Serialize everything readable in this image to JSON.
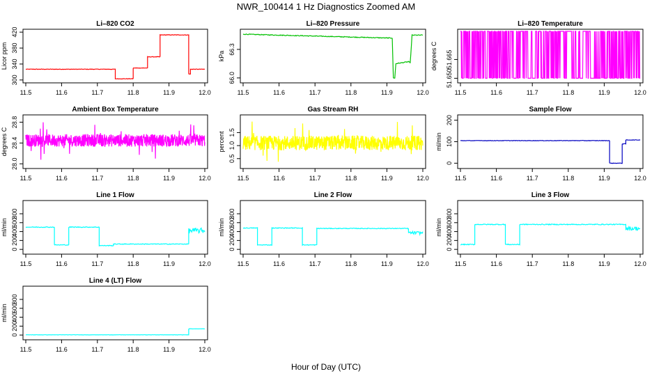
{
  "figure": {
    "title": "NWR_100414  1 Hz Diagnostics Zoomed AM",
    "xlabel": "Hour of Day (UTC)"
  },
  "chart_data": [
    {
      "id": "licor-co2",
      "type": "line",
      "title": "Li–820 CO2",
      "xlabel": "",
      "ylabel": "Licor ppm",
      "color": "#ff0000",
      "xlim": [
        11.5,
        12.0
      ],
      "ylim": [
        298,
        422
      ],
      "xticks": [
        "11.5",
        "11.6",
        "11.7",
        "11.8",
        "11.9",
        "12.0"
      ],
      "xtick_values": [
        11.5,
        11.6,
        11.7,
        11.8,
        11.9,
        12.0
      ],
      "yticks": [
        "300",
        "340",
        "380",
        "420"
      ],
      "ytick_values": [
        300,
        340,
        380,
        420
      ],
      "noise": 0.6,
      "x": [
        11.5,
        11.75,
        11.75,
        11.8,
        11.8,
        11.84,
        11.84,
        11.875,
        11.875,
        11.955,
        11.955,
        11.96,
        11.96,
        12.0
      ],
      "y": [
        327,
        327,
        303,
        303,
        330,
        330,
        358,
        358,
        413,
        413,
        315,
        315,
        327,
        327
      ]
    },
    {
      "id": "licor-pressure",
      "type": "line",
      "title": "Li–820 Pressure",
      "xlabel": "",
      "ylabel": "kPa",
      "color": "#00c000",
      "xlim": [
        11.5,
        12.0
      ],
      "ylim": [
        65.97,
        66.49
      ],
      "xticks": [
        "11.5",
        "11.6",
        "11.7",
        "11.8",
        "11.9",
        "12.0"
      ],
      "xtick_values": [
        11.5,
        11.6,
        11.7,
        11.8,
        11.9,
        12.0
      ],
      "yticks": [
        "66.0",
        "66.3"
      ],
      "ytick_values": [
        66.0,
        66.3
      ],
      "noise": 0.004,
      "x": [
        11.5,
        11.6,
        11.7,
        11.8,
        11.9,
        11.915,
        11.918,
        11.922,
        11.925,
        11.96,
        11.965,
        11.97,
        12.0
      ],
      "y": [
        66.46,
        66.45,
        66.44,
        66.43,
        66.42,
        66.42,
        66.0,
        66.0,
        66.15,
        66.17,
        66.16,
        66.45,
        66.45
      ]
    },
    {
      "id": "licor-temperature",
      "type": "line",
      "title": "Li–820 Temperature",
      "xlabel": "",
      "ylabel": "degrees C",
      "color": "#ff00ff",
      "xlim": [
        11.5,
        12.0
      ],
      "ylim": [
        51.648,
        51.6875
      ],
      "xticks": [
        "11.5",
        "11.6",
        "11.7",
        "11.8",
        "11.9",
        "12.0"
      ],
      "xtick_values": [
        11.5,
        11.6,
        11.7,
        11.8,
        11.9,
        12.0
      ],
      "yticks": [
        "51.650",
        "51.665"
      ],
      "ytick_values": [
        51.65,
        51.665
      ],
      "pattern": "toggle",
      "y_low": 51.65,
      "y_high": 51.6875
    },
    {
      "id": "ambient-box-temperature",
      "type": "line",
      "title": "Ambient Box Temperature",
      "xlabel": "",
      "ylabel": "degrees C",
      "color": "#ff00ff",
      "xlim": [
        11.5,
        12.0
      ],
      "ylim": [
        27.95,
        28.9
      ],
      "xticks": [
        "11.5",
        "11.6",
        "11.7",
        "11.8",
        "11.9",
        "12.0"
      ],
      "xtick_values": [
        11.5,
        11.6,
        11.7,
        11.8,
        11.9,
        12.0
      ],
      "yticks": [
        "28.0",
        "28.4",
        "28.8"
      ],
      "ytick_values": [
        28.0,
        28.4,
        28.8
      ],
      "pattern": "noise",
      "mean": 28.45,
      "amplitude": 0.12,
      "spike": 0.4
    },
    {
      "id": "gas-stream-rh",
      "type": "line",
      "title": "Gas Stream RH",
      "xlabel": "",
      "ylabel": "percent",
      "color": "#ffff00",
      "xlim": [
        11.5,
        12.0
      ],
      "ylim": [
        0.2,
        2.1
      ],
      "xticks": [
        "11.5",
        "11.6",
        "11.7",
        "11.8",
        "11.9",
        "12.0"
      ],
      "xtick_values": [
        11.5,
        11.6,
        11.7,
        11.8,
        11.9,
        12.0
      ],
      "yticks": [
        "0.5",
        "1.0",
        "1.5"
      ],
      "ytick_values": [
        0.5,
        1.0,
        1.5
      ],
      "pattern": "noise",
      "mean": 1.1,
      "amplitude": 0.28,
      "spike": 0.9
    },
    {
      "id": "sample-flow",
      "type": "line",
      "title": "Sample Flow",
      "xlabel": "",
      "ylabel": "ml/min",
      "color": "#0000c0",
      "xlim": [
        11.5,
        12.0
      ],
      "ylim": [
        -15,
        215
      ],
      "xticks": [
        "11.5",
        "11.6",
        "11.7",
        "11.8",
        "11.9",
        "12.0"
      ],
      "xtick_values": [
        11.5,
        11.6,
        11.7,
        11.8,
        11.9,
        12.0
      ],
      "yticks": [
        "0",
        "100",
        "200"
      ],
      "ytick_values": [
        0,
        100,
        200
      ],
      "noise": 1.0,
      "x": [
        11.5,
        11.915,
        11.915,
        11.95,
        11.95,
        11.96,
        11.96,
        12.0
      ],
      "y": [
        105,
        105,
        0,
        0,
        90,
        90,
        108,
        108
      ]
    },
    {
      "id": "line-1-flow",
      "type": "line",
      "title": "Line 1 Flow",
      "xlabel": "",
      "ylabel": "ml/min",
      "color": "#00ffff",
      "xlim": [
        11.5,
        12.0
      ],
      "ylim": [
        -60,
        1050
      ],
      "xticks": [
        "11.5",
        "11.6",
        "11.7",
        "11.8",
        "11.9",
        "12.0"
      ],
      "xtick_values": [
        11.5,
        11.6,
        11.7,
        11.8,
        11.9,
        12.0
      ],
      "yticks": [
        "0",
        "200",
        "400",
        "600",
        "800"
      ],
      "ytick_values": [
        0,
        200,
        400,
        600,
        800
      ],
      "noise": 8,
      "x": [
        11.5,
        11.58,
        11.58,
        11.62,
        11.62,
        11.705,
        11.705,
        11.745,
        11.745,
        11.955,
        11.955,
        12.0
      ],
      "y": [
        500,
        500,
        100,
        100,
        500,
        500,
        85,
        85,
        120,
        120,
        420,
        420
      ],
      "noisy_tail_from": 11.955,
      "noisy_tail_amp": 60
    },
    {
      "id": "line-2-flow",
      "type": "line",
      "title": "Line 2 Flow",
      "xlabel": "",
      "ylabel": "ml/min",
      "color": "#00ffff",
      "xlim": [
        11.5,
        12.0
      ],
      "ylim": [
        -60,
        1050
      ],
      "xticks": [
        "11.5",
        "11.6",
        "11.7",
        "11.8",
        "11.9",
        "12.0"
      ],
      "xtick_values": [
        11.5,
        11.6,
        11.7,
        11.8,
        11.9,
        12.0
      ],
      "yticks": [
        "0",
        "200",
        "400",
        "600",
        "800"
      ],
      "ytick_values": [
        0,
        200,
        400,
        600,
        800
      ],
      "noise": 8,
      "x": [
        11.5,
        11.54,
        11.54,
        11.58,
        11.58,
        11.665,
        11.665,
        11.705,
        11.705,
        11.96,
        11.96,
        12.0
      ],
      "y": [
        480,
        480,
        100,
        100,
        480,
        480,
        100,
        100,
        470,
        470,
        370,
        370
      ],
      "noisy_tail_from": 11.96,
      "noisy_tail_amp": 35
    },
    {
      "id": "line-3-flow",
      "type": "line",
      "title": "Line 3 Flow",
      "xlabel": "",
      "ylabel": "ml/min",
      "color": "#00ffff",
      "xlim": [
        11.5,
        12.0
      ],
      "ylim": [
        -60,
        1050
      ],
      "xticks": [
        "11.5",
        "11.6",
        "11.7",
        "11.8",
        "11.9",
        "12.0"
      ],
      "xtick_values": [
        11.5,
        11.6,
        11.7,
        11.8,
        11.9,
        12.0
      ],
      "yticks": [
        "0",
        "200",
        "400",
        "600",
        "800"
      ],
      "ytick_values": [
        0,
        200,
        400,
        600,
        800
      ],
      "noise": 10,
      "x": [
        11.5,
        11.54,
        11.54,
        11.625,
        11.625,
        11.665,
        11.665,
        11.96,
        11.96,
        12.0
      ],
      "y": [
        110,
        110,
        560,
        560,
        110,
        110,
        560,
        560,
        470,
        470
      ],
      "noisy_tail_from": 11.96,
      "noisy_tail_amp": 45
    },
    {
      "id": "line-4-lt-flow",
      "type": "line",
      "title": "Line 4 (LT) Flow",
      "xlabel": "",
      "ylabel": "ml/min",
      "color": "#00ffff",
      "xlim": [
        11.5,
        12.0
      ],
      "ylim": [
        -60,
        1050
      ],
      "xticks": [
        "11.5",
        "11.6",
        "11.7",
        "11.8",
        "11.9",
        "12.0"
      ],
      "xtick_values": [
        11.5,
        11.6,
        11.7,
        11.8,
        11.9,
        12.0
      ],
      "yticks": [
        "0",
        "200",
        "400",
        "600",
        "800"
      ],
      "ytick_values": [
        0,
        200,
        400,
        600,
        800
      ],
      "noise": 3,
      "x": [
        11.5,
        11.955,
        11.955,
        12.0
      ],
      "y": [
        5,
        5,
        140,
        140
      ]
    }
  ]
}
